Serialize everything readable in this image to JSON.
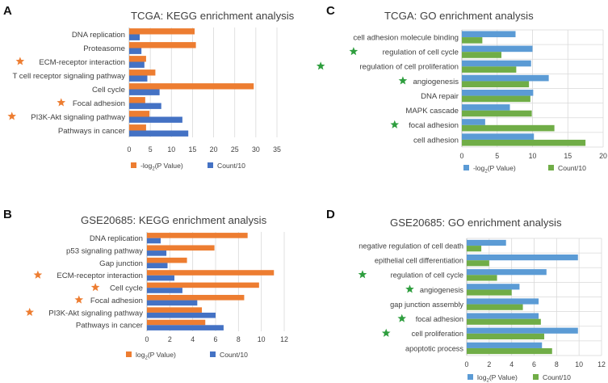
{
  "colors": {
    "orange": "#ED7D31",
    "blue": "#4472C4",
    "lightblue": "#5B9BD5",
    "green": "#70AD47",
    "star_orange": "#ED7D31",
    "star_green": "#2E9E3E",
    "grid": "#D9D9D9",
    "text": "#404040"
  },
  "chart_data": [
    {
      "panel": "A",
      "type": "bar",
      "orientation": "horizontal",
      "title": "TCGA: KEGG enrichment analysis",
      "categories": [
        "DNA replication",
        "Proteasome",
        "ECM-receptor interaction",
        "T cell receptor signaling pathway",
        "Cell cycle",
        "Focal adhesion",
        "PI3K-Akt signaling pathway",
        "Pathways in cancer"
      ],
      "starred": [
        false,
        false,
        true,
        false,
        false,
        true,
        true,
        false
      ],
      "series": [
        {
          "name": "-log2(P Value)",
          "legend_main": "-log",
          "legend_sub": "2",
          "legend_rest": "(P Value)",
          "color": "#ED7D31",
          "values": [
            15.5,
            15.8,
            4.0,
            6.2,
            29.5,
            3.8,
            4.8,
            4.0
          ]
        },
        {
          "name": "Count/10",
          "legend_main": "Count/10",
          "legend_sub": "",
          "legend_rest": "",
          "color": "#4472C4",
          "values": [
            2.5,
            2.9,
            3.6,
            4.3,
            7.2,
            7.6,
            12.6,
            14.0
          ]
        }
      ],
      "ticks": [
        "0",
        "5",
        "10",
        "15",
        "20",
        "25",
        "30",
        "35"
      ],
      "xlim": [
        0,
        35
      ]
    },
    {
      "panel": "B",
      "type": "bar",
      "orientation": "horizontal",
      "title": "GSE20685: KEGG enrichment analysis",
      "categories": [
        "DNA replication",
        "p53 signaling pathway",
        "Gap junction",
        "ECM-receptor interaction",
        "Cell cycle",
        "Focal adhesion",
        "PI3K-Akt signaling pathway",
        "Pathways in cancer"
      ],
      "starred": [
        false,
        false,
        false,
        true,
        true,
        true,
        true,
        false
      ],
      "series": [
        {
          "name": "log2(P Value)",
          "legend_main": "log",
          "legend_sub": "2",
          "legend_rest": "(P Value)",
          "color": "#ED7D31",
          "values": [
            8.8,
            5.9,
            3.5,
            11.1,
            9.8,
            8.5,
            4.8,
            5.1
          ]
        },
        {
          "name": "Count/10",
          "legend_main": "Count/10",
          "legend_sub": "",
          "legend_rest": "",
          "color": "#4472C4",
          "values": [
            1.2,
            1.7,
            1.8,
            2.4,
            3.1,
            4.4,
            6.0,
            6.7
          ]
        }
      ],
      "ticks": [
        "0",
        "2",
        "4",
        "6",
        "8",
        "10",
        "12"
      ],
      "xlim": [
        0,
        12
      ]
    },
    {
      "panel": "C",
      "type": "bar",
      "orientation": "horizontal",
      "title": "TCGA: GO enrichment analysis",
      "categories": [
        "cell adhesion molecule binding",
        "regulation of cell cycle",
        "regulation of cell proliferation",
        "angiogenesis",
        "DNA repair",
        "MAPK cascade",
        "focal adhesion",
        "cell adhesion"
      ],
      "starred": [
        false,
        true,
        true,
        true,
        false,
        false,
        true,
        false
      ],
      "series": [
        {
          "name": "-log2(P Value)",
          "legend_main": "-log",
          "legend_sub": "2",
          "legend_rest": "(P Value)",
          "color": "#5B9BD5",
          "values": [
            7.6,
            10.0,
            9.8,
            12.3,
            10.1,
            6.8,
            3.3,
            10.2
          ]
        },
        {
          "name": "Count/10",
          "legend_main": "Count/10",
          "legend_sub": "",
          "legend_rest": "",
          "color": "#70AD47",
          "values": [
            2.9,
            5.6,
            7.7,
            9.5,
            9.7,
            9.9,
            13.1,
            17.5
          ]
        }
      ],
      "ticks": [
        "0",
        "5",
        "10",
        "15",
        "20"
      ],
      "xlim": [
        0,
        20
      ]
    },
    {
      "panel": "D",
      "type": "bar",
      "orientation": "horizontal",
      "title": "GSE20685: GO enrichment analysis",
      "categories": [
        "negative regulation of cell death",
        "epithelial cell differentiation",
        "regulation of cell cycle",
        "angiogenesis",
        "gap junction assembly",
        "focal adhesion",
        "cell proliferation",
        "apoptotic process"
      ],
      "starred": [
        false,
        false,
        true,
        true,
        false,
        true,
        true,
        false
      ],
      "series": [
        {
          "name": "log2(P Value)",
          "legend_main": "log",
          "legend_sub": "2",
          "legend_rest": "(P Value)",
          "color": "#5B9BD5",
          "values": [
            3.5,
            9.9,
            7.1,
            4.7,
            6.4,
            6.4,
            9.9,
            6.7
          ]
        },
        {
          "name": "Count/10",
          "legend_main": "Count/10",
          "legend_sub": "",
          "legend_rest": "",
          "color": "#70AD47",
          "values": [
            1.3,
            2.0,
            2.7,
            4.0,
            5.0,
            6.6,
            6.9,
            7.6
          ]
        }
      ],
      "ticks": [
        "0",
        "2",
        "4",
        "6",
        "8",
        "10",
        "12"
      ],
      "xlim": [
        0,
        12
      ]
    }
  ]
}
